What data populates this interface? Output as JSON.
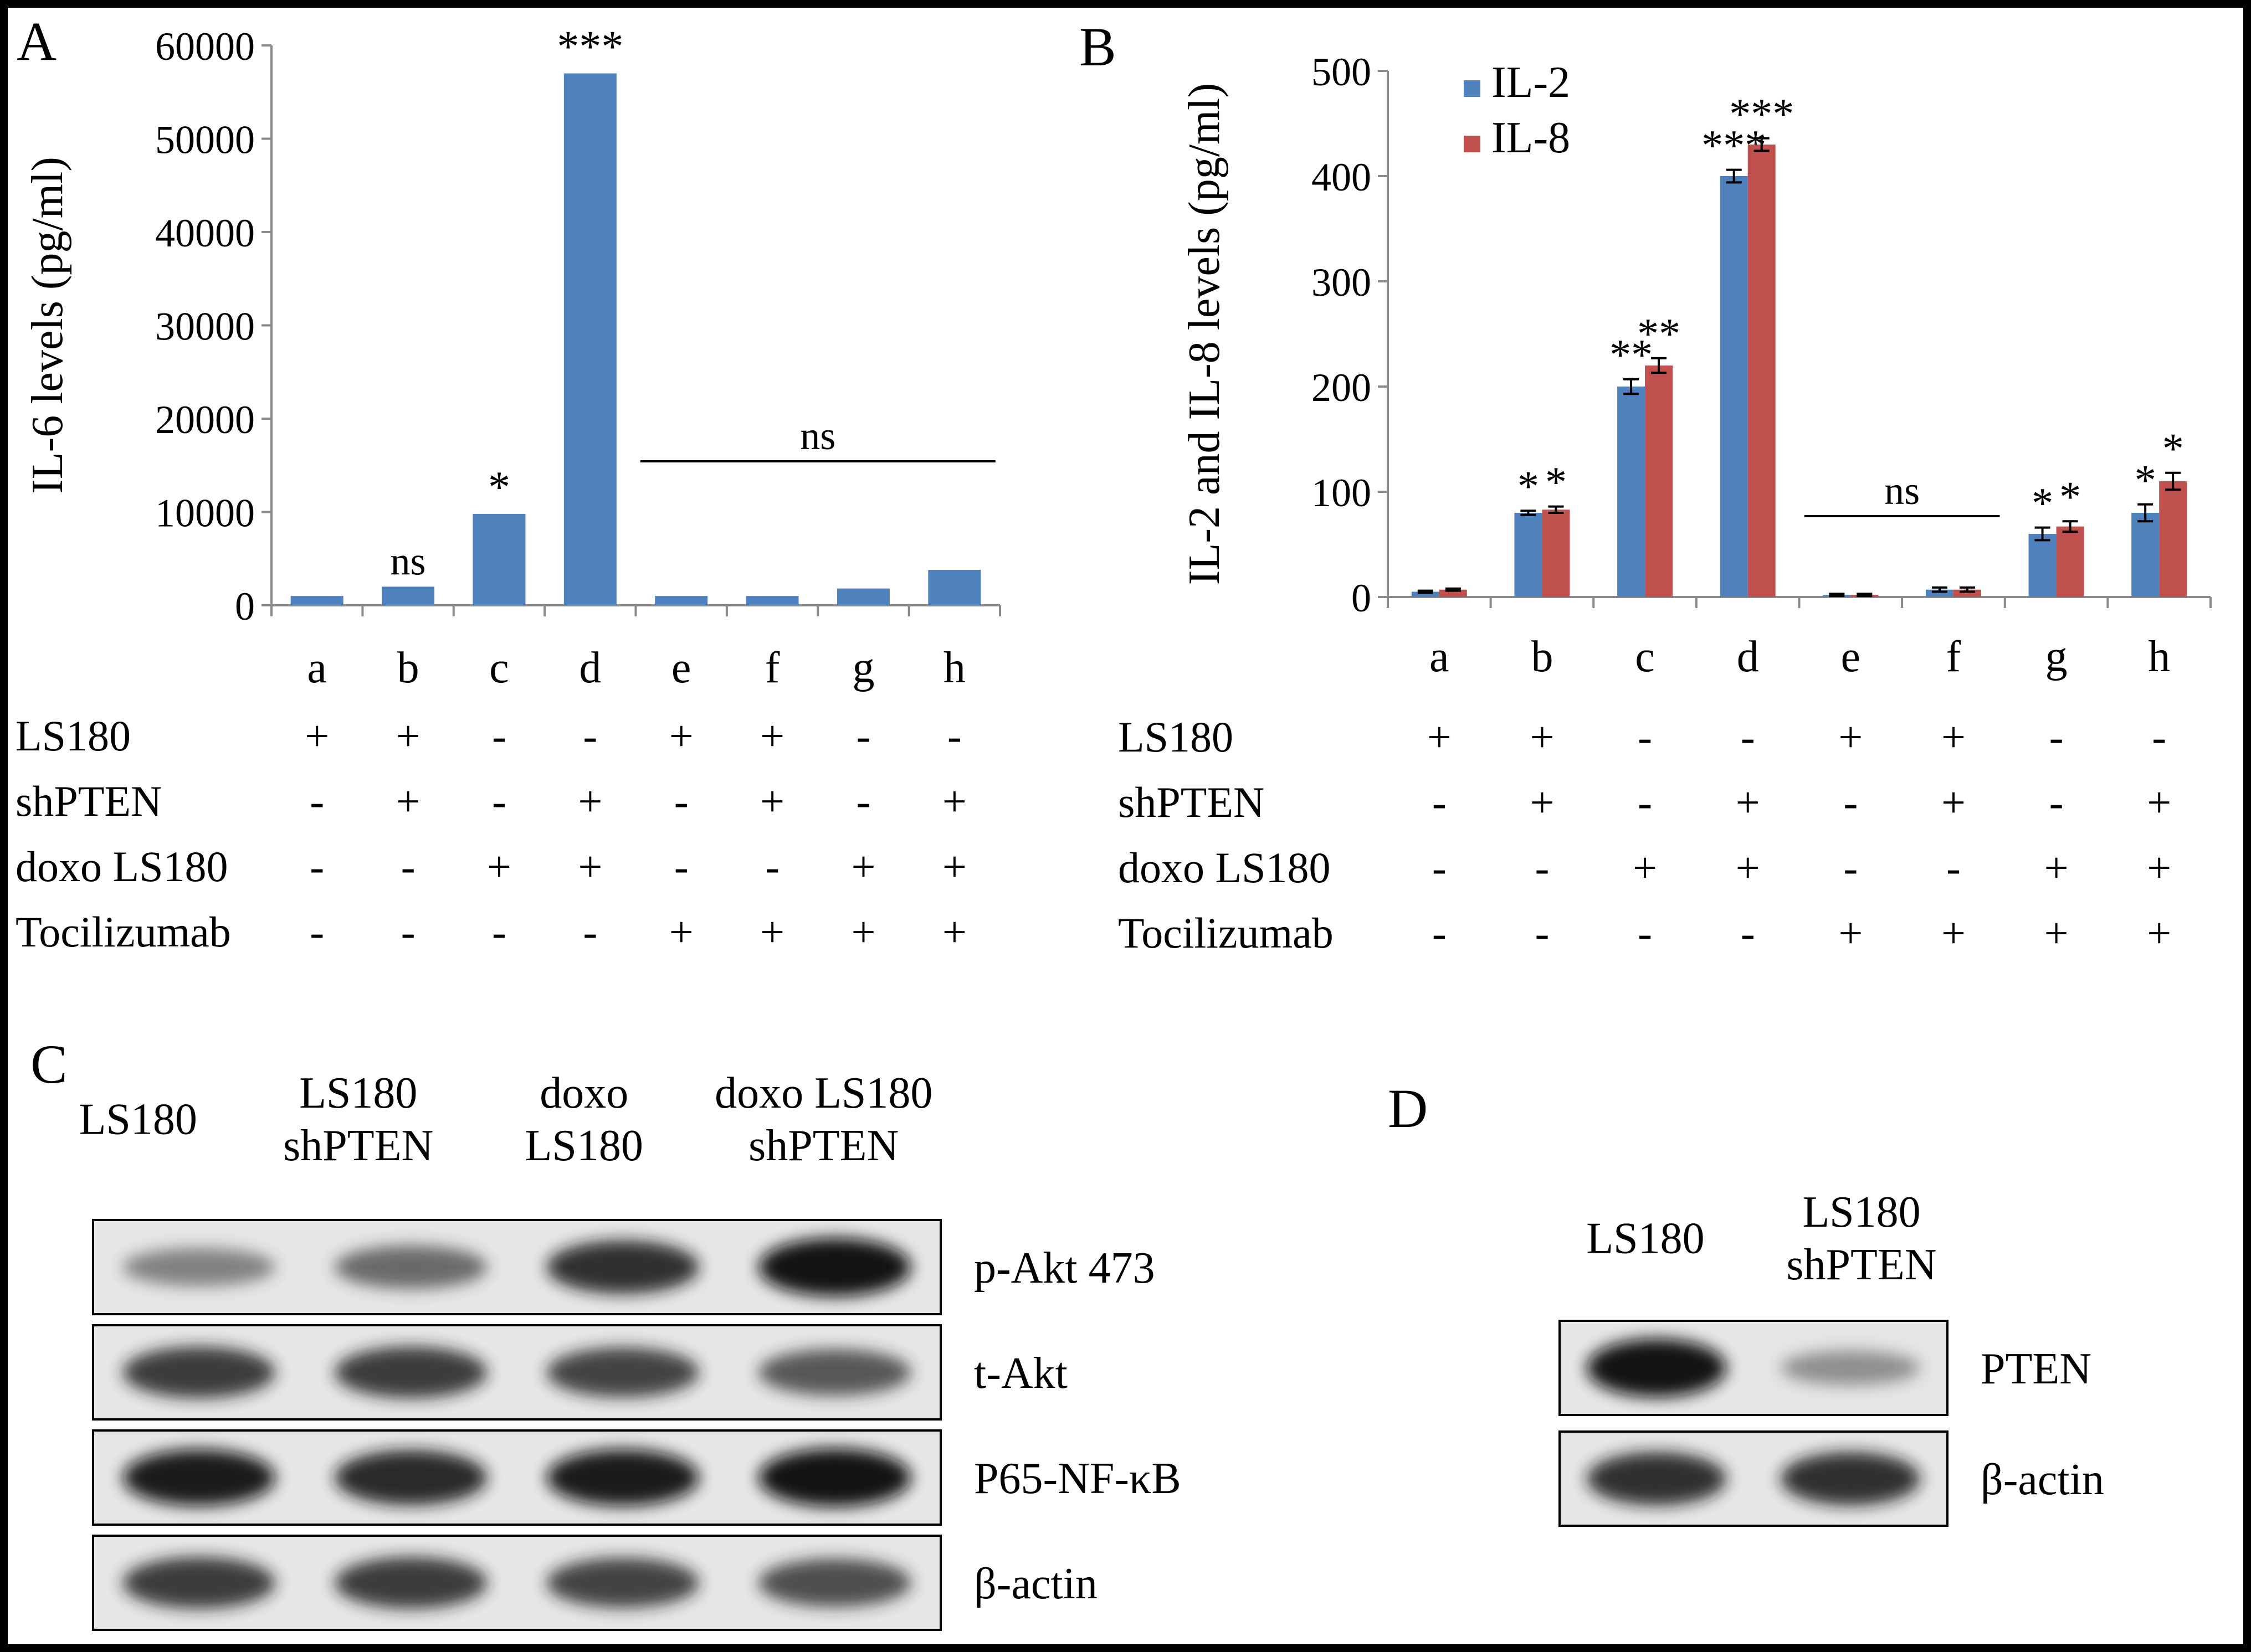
{
  "panels": {
    "A": {
      "letter": "A"
    },
    "B": {
      "letter": "B"
    },
    "C": {
      "letter": "C"
    },
    "D": {
      "letter": "D"
    }
  },
  "chart_data": [
    {
      "panel": "A",
      "type": "bar",
      "ylabel": "IL-6 levels (pg/ml)",
      "ylim": [
        0,
        60000
      ],
      "yticks": [
        0,
        10000,
        20000,
        30000,
        40000,
        50000,
        60000
      ],
      "categories": [
        "a",
        "b",
        "c",
        "d",
        "e",
        "f",
        "g",
        "h"
      ],
      "series": [
        {
          "values": [
            1000,
            2000,
            9800,
            57000,
            1000,
            1000,
            1800,
            3800
          ],
          "color": "#4f81bd"
        }
      ],
      "significance": [
        "",
        "ns",
        "*",
        "***",
        "",
        "",
        "",
        ""
      ],
      "group_annotation": {
        "label": "ns",
        "from": "e",
        "to": "h"
      },
      "conditions": [
        {
          "label": "LS180",
          "values": [
            "+",
            "+",
            "-",
            "-",
            "+",
            "+",
            "-",
            "-"
          ]
        },
        {
          "label": "shPTEN",
          "values": [
            "-",
            "+",
            "-",
            "+",
            "-",
            "+",
            "-",
            "+"
          ]
        },
        {
          "label": "doxo LS180",
          "values": [
            "-",
            "-",
            "+",
            "+",
            "-",
            "-",
            "+",
            "+"
          ]
        },
        {
          "label": "Tocilizumab",
          "values": [
            "-",
            "-",
            "-",
            "-",
            "+",
            "+",
            "+",
            "+"
          ]
        }
      ],
      "legend": "none",
      "grid": false
    },
    {
      "panel": "B",
      "type": "bar",
      "ylabel": "IL-2 and IL-8 levels (pg/ml)",
      "ylim": [
        0,
        500
      ],
      "yticks": [
        0,
        100,
        200,
        300,
        400,
        500
      ],
      "categories": [
        "a",
        "b",
        "c",
        "d",
        "e",
        "f",
        "g",
        "h"
      ],
      "series": [
        {
          "name": "IL-2",
          "values": [
            5,
            80,
            200,
            400,
            2,
            7,
            60,
            80
          ],
          "errors": [
            1,
            2,
            7,
            6,
            1,
            2,
            6,
            8
          ],
          "color": "#4f81bd",
          "significance": [
            "",
            "*",
            "**",
            "***",
            "",
            "",
            "*",
            "*"
          ]
        },
        {
          "name": "IL-8",
          "values": [
            7,
            83,
            220,
            430,
            2,
            7,
            67,
            110
          ],
          "errors": [
            1,
            3,
            7,
            6,
            1,
            2,
            5,
            8
          ],
          "color": "#c0504d",
          "significance": [
            "",
            "*",
            "**",
            "***",
            "",
            "",
            "*",
            "*"
          ]
        }
      ],
      "group_annotation": {
        "label": "ns",
        "from": "e",
        "to": "f"
      },
      "conditions": [
        {
          "label": "LS180",
          "values": [
            "+",
            "+",
            "-",
            "-",
            "+",
            "+",
            "-",
            "-"
          ]
        },
        {
          "label": "shPTEN",
          "values": [
            "-",
            "+",
            "-",
            "+",
            "-",
            "+",
            "-",
            "+"
          ]
        },
        {
          "label": "doxo LS180",
          "values": [
            "-",
            "-",
            "+",
            "+",
            "-",
            "-",
            "+",
            "+"
          ]
        },
        {
          "label": "Tocilizumab",
          "values": [
            "-",
            "-",
            "-",
            "-",
            "+",
            "+",
            "+",
            "+"
          ]
        }
      ],
      "legend": "top-left",
      "grid": false
    }
  ],
  "blot_C": {
    "lanes": [
      {
        "line1": "LS180",
        "line2": ""
      },
      {
        "line1": "LS180",
        "line2": "shPTEN"
      },
      {
        "line1": "doxo",
        "line2": "LS180"
      },
      {
        "line1": "doxo LS180",
        "line2": "shPTEN"
      }
    ],
    "rows": [
      {
        "label": "p-Akt 473",
        "intensity": [
          0.35,
          0.5,
          0.8,
          0.95
        ]
      },
      {
        "label": "t-Akt",
        "intensity": [
          0.75,
          0.75,
          0.7,
          0.6
        ]
      },
      {
        "label": "P65-NF-κB",
        "intensity": [
          0.9,
          0.85,
          0.9,
          0.95
        ]
      },
      {
        "label": "β-actin",
        "intensity": [
          0.75,
          0.75,
          0.7,
          0.65
        ]
      }
    ]
  },
  "blot_D": {
    "lanes": [
      {
        "line1": "LS180",
        "line2": ""
      },
      {
        "line1": "LS180",
        "line2": "shPTEN"
      }
    ],
    "rows": [
      {
        "label": "PTEN",
        "intensity": [
          0.95,
          0.25
        ]
      },
      {
        "label": "β-actin",
        "intensity": [
          0.8,
          0.8
        ]
      }
    ]
  }
}
